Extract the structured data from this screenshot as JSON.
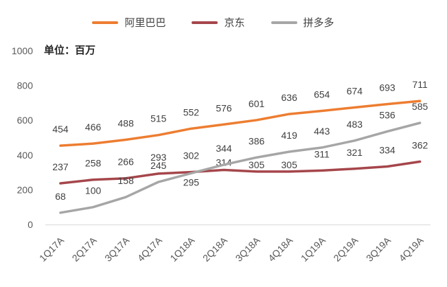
{
  "chart_data": {
    "type": "line",
    "title": "",
    "unit_label": "单位：百万",
    "categories": [
      "1Q17A",
      "2Q17A",
      "3Q17A",
      "4Q17A",
      "1Q18A",
      "2Q18A",
      "3Q18A",
      "4Q18A",
      "1Q19A",
      "2Q19A",
      "3Q19A",
      "4Q19A"
    ],
    "series": [
      {
        "key": "alibaba",
        "name": "阿里巴巴",
        "color": "#ED7D31",
        "values": [
          454,
          466,
          488,
          515,
          552,
          576,
          601,
          636,
          654,
          674,
          693,
          711
        ]
      },
      {
        "key": "jd",
        "name": "京东",
        "color": "#A5464B",
        "values": [
          237,
          258,
          266,
          293,
          302,
          314,
          305,
          305,
          311,
          321,
          334,
          362
        ]
      },
      {
        "key": "pinduoduo",
        "name": "拼多多",
        "color": "#A6A6A6",
        "values": [
          68,
          100,
          158,
          245,
          295,
          344,
          386,
          419,
          443,
          483,
          536,
          585
        ]
      }
    ],
    "y_ticks": [
      0,
      200,
      400,
      600,
      800,
      1000
    ],
    "ylim": [
      0,
      1000
    ],
    "xlabel": "",
    "ylabel": "",
    "legend_position": "top",
    "gridlines": false,
    "data_labels": true,
    "axis_line_color": "#D9D9D9",
    "axis_text_color": "#595959",
    "data_label_color": "#404040"
  }
}
